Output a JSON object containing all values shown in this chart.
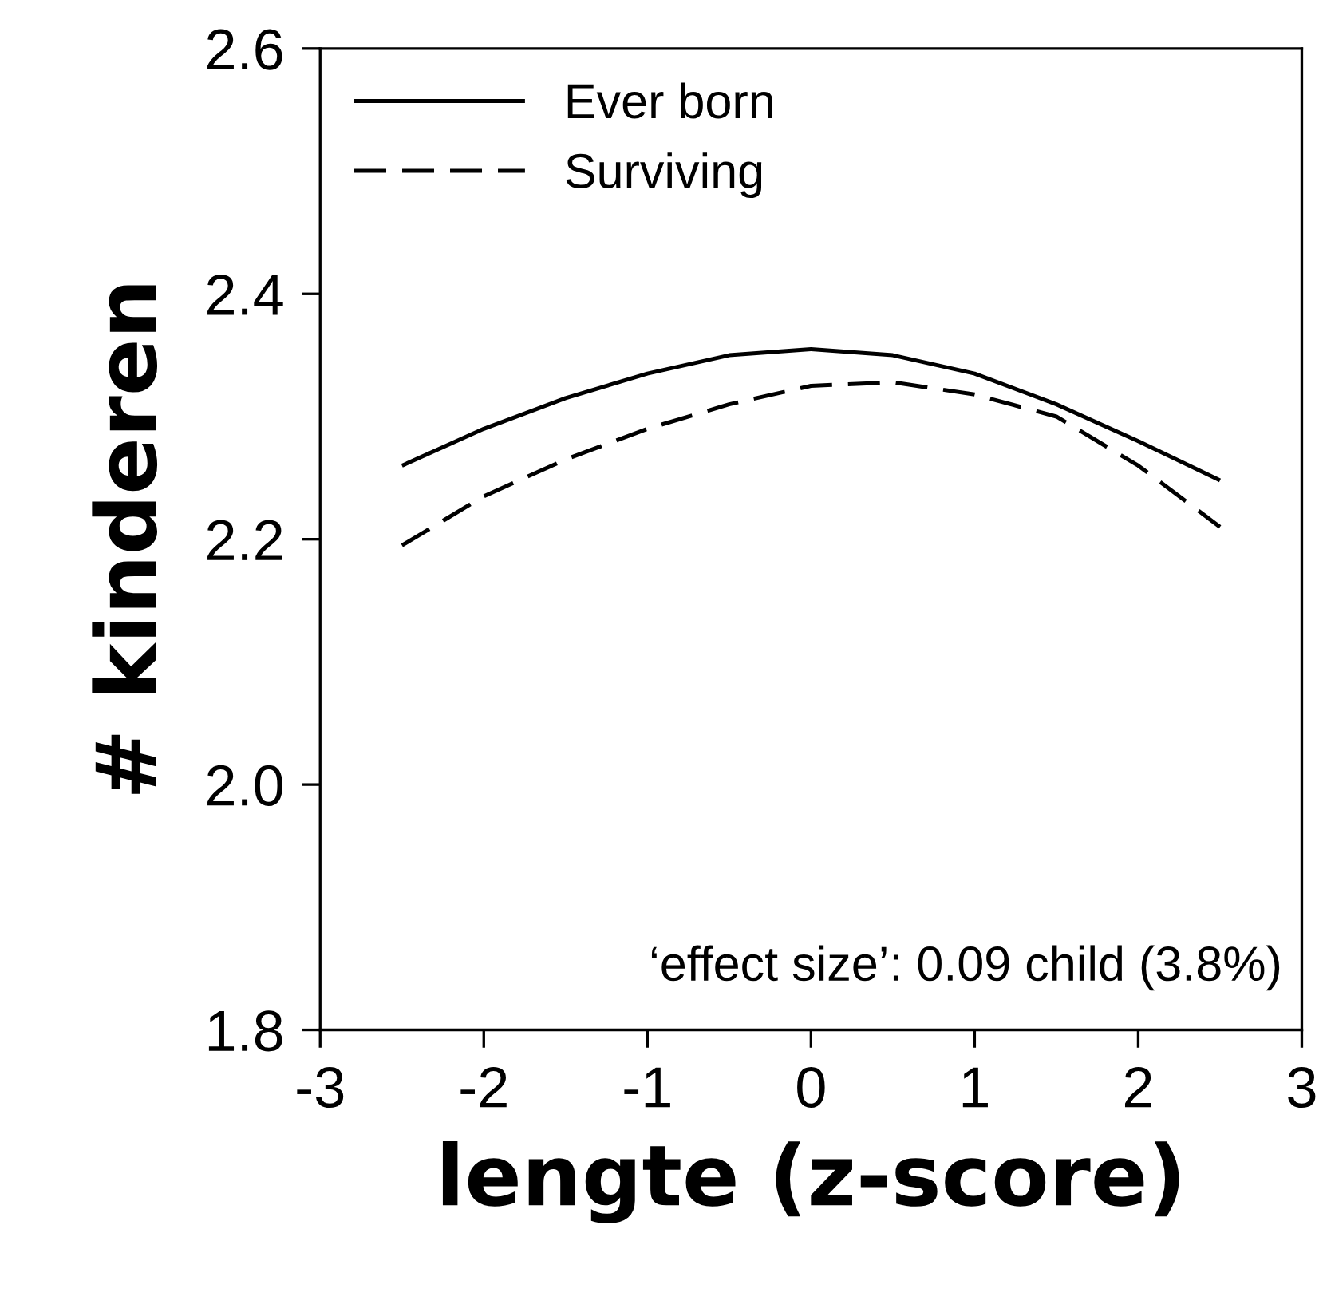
{
  "chart_data": {
    "type": "line",
    "xlabel": "lengte (z-score)",
    "ylabel": "# kinderen",
    "x": [
      -2.5,
      -2,
      -1.5,
      -1,
      -0.5,
      0,
      0.5,
      1,
      1.5,
      2,
      2.5
    ],
    "series": [
      {
        "name": "Ever born",
        "color": "#000000",
        "line_style": "solid",
        "values": [
          2.26,
          2.29,
          2.315,
          2.335,
          2.35,
          2.355,
          2.35,
          2.335,
          2.31,
          2.28,
          2.248
        ]
      },
      {
        "name": "Surviving",
        "color": "#000000",
        "line_style": "dashed",
        "values": [
          2.195,
          2.235,
          2.265,
          2.29,
          2.31,
          2.325,
          2.328,
          2.318,
          2.3,
          2.26,
          2.21
        ]
      }
    ],
    "xlim": [
      -3,
      3
    ],
    "xticks": [
      -3,
      -2,
      -1,
      0,
      1,
      2,
      3
    ],
    "ylim": [
      1.8,
      2.6
    ],
    "yticks": [
      1.8,
      {
        "value": 2,
        "label": "2.0"
      },
      2.2,
      2.4,
      2.6
    ],
    "annotations": [
      "‘effect size’: 0.09 child (3.8%)"
    ],
    "legend": "top left",
    "grid": false,
    "marker": "none"
  }
}
